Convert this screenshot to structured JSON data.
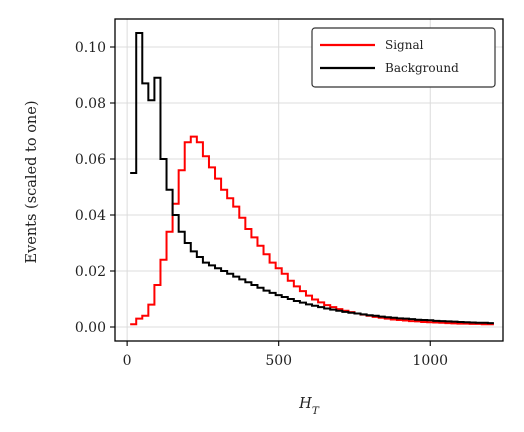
{
  "chart_data": {
    "type": "line",
    "xlabel": "H_T",
    "ylabel": "Events (scaled to one)",
    "xlim": [
      -40,
      1240
    ],
    "ylim": [
      -0.005,
      0.11
    ],
    "xticks": [
      0,
      500,
      1000
    ],
    "xtick_labels": [
      "0",
      "500",
      "1000"
    ],
    "yticks": [
      0.0,
      0.02,
      0.04,
      0.06,
      0.08,
      0.1
    ],
    "ytick_labels": [
      "0.00",
      "0.02",
      "0.04",
      "0.06",
      "0.08",
      "0.10"
    ],
    "grid": true,
    "legend_position": "top-right",
    "bin_width": 20,
    "series": [
      {
        "name": "Signal",
        "color": "#ff0000",
        "bin_start": 10,
        "values": [
          0.001,
          0.003,
          0.004,
          0.008,
          0.015,
          0.024,
          0.034,
          0.044,
          0.056,
          0.066,
          0.068,
          0.066,
          0.061,
          0.057,
          0.053,
          0.049,
          0.046,
          0.043,
          0.039,
          0.035,
          0.032,
          0.029,
          0.026,
          0.023,
          0.021,
          0.019,
          0.0165,
          0.0145,
          0.0128,
          0.0112,
          0.0098,
          0.0088,
          0.0078,
          0.0071,
          0.0064,
          0.0058,
          0.0053,
          0.0048,
          0.0044,
          0.004,
          0.0036,
          0.0033,
          0.003,
          0.0027,
          0.0025,
          0.0023,
          0.0021,
          0.002,
          0.0018,
          0.0017,
          0.0016,
          0.0015,
          0.0014,
          0.0013,
          0.0012,
          0.0012,
          0.0011,
          0.0011,
          0.001,
          0.001
        ]
      },
      {
        "name": "Background",
        "color": "#000000",
        "bin_start": 10,
        "values": [
          0.055,
          0.105,
          0.087,
          0.081,
          0.089,
          0.06,
          0.049,
          0.04,
          0.034,
          0.03,
          0.027,
          0.025,
          0.023,
          0.022,
          0.021,
          0.02,
          0.019,
          0.018,
          0.017,
          0.016,
          0.015,
          0.014,
          0.013,
          0.0122,
          0.0114,
          0.0107,
          0.01,
          0.0093,
          0.0087,
          0.0081,
          0.0076,
          0.0071,
          0.0066,
          0.0062,
          0.0058,
          0.0054,
          0.0051,
          0.0048,
          0.0045,
          0.0042,
          0.004,
          0.0037,
          0.0035,
          0.0033,
          0.0031,
          0.003,
          0.0028,
          0.0026,
          0.0025,
          0.0024,
          0.0022,
          0.0021,
          0.002,
          0.0019,
          0.0018,
          0.0017,
          0.0016,
          0.0015,
          0.0015,
          0.0014
        ]
      }
    ]
  }
}
